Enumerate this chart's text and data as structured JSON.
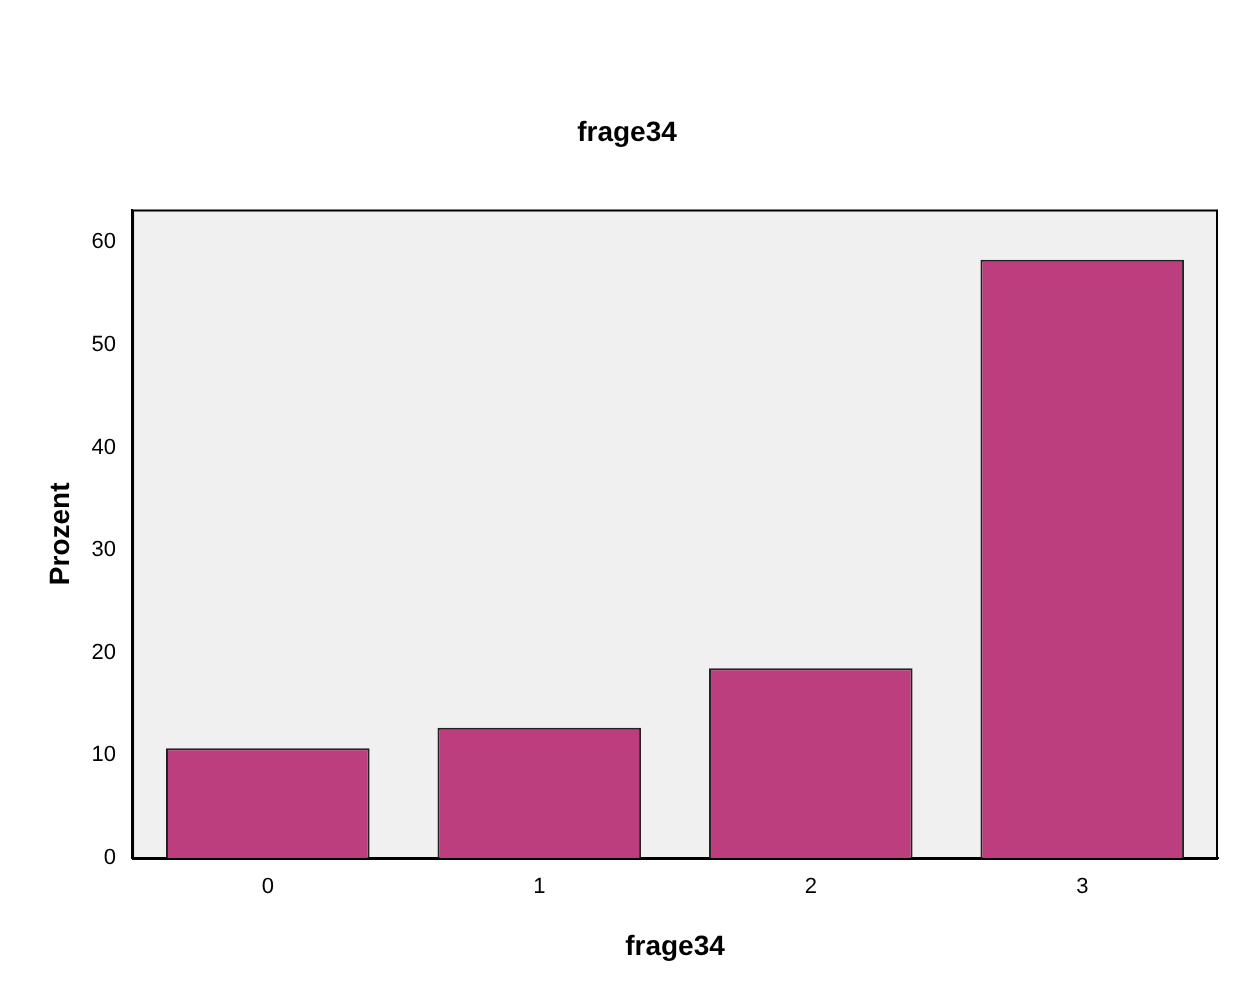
{
  "chart_data": {
    "type": "bar",
    "title": "frage34",
    "xlabel": "frage34",
    "ylabel": "Prozent",
    "categories": [
      "0",
      "1",
      "2",
      "3"
    ],
    "values": [
      10.7,
      12.7,
      18.5,
      58.3
    ],
    "color": "#bc3e7e",
    "ylim": [
      0,
      63.2
    ],
    "yticks": [
      0,
      10,
      20,
      30,
      40,
      50,
      60
    ],
    "grid": false,
    "legend": false
  }
}
